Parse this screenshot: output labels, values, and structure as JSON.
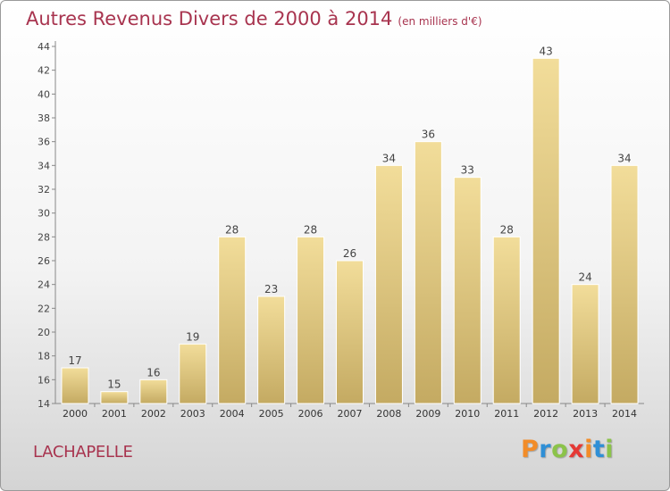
{
  "title": "Autres Revenus Divers de 2000 à 2014",
  "subtitle": "(en milliers d'€)",
  "commune": "LACHAPELLE",
  "logo": {
    "text": "Proxiti",
    "letters": [
      {
        "ch": "P",
        "color": "#f28c28"
      },
      {
        "ch": "r",
        "color": "#2f8fd6"
      },
      {
        "ch": "o",
        "color": "#8bc34a"
      },
      {
        "ch": "x",
        "color": "#e53935"
      },
      {
        "ch": "i",
        "color": "#f28c28"
      },
      {
        "ch": "t",
        "color": "#2f8fd6"
      },
      {
        "ch": "i",
        "color": "#8bc34a"
      }
    ]
  },
  "colors": {
    "title": "#a8344f",
    "bar_top": "#f2dd9a",
    "bar_bottom": "#c4aa62",
    "bar_stroke": "#ffffff"
  },
  "chart_data": {
    "type": "bar",
    "categories": [
      "2000",
      "2001",
      "2002",
      "2003",
      "2004",
      "2005",
      "2006",
      "2007",
      "2008",
      "2009",
      "2010",
      "2011",
      "2012",
      "2013",
      "2014"
    ],
    "values": [
      17,
      15,
      16,
      19,
      28,
      23,
      28,
      26,
      34,
      36,
      33,
      28,
      43,
      24,
      34
    ],
    "ylim": [
      14,
      44
    ],
    "yticks": [
      14,
      16,
      18,
      20,
      22,
      24,
      26,
      28,
      30,
      32,
      34,
      36,
      38,
      40,
      42,
      44
    ],
    "grid": false,
    "data_labels": true
  }
}
